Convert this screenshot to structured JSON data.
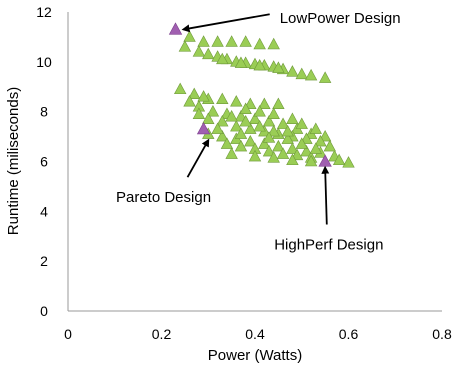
{
  "chart_data": {
    "type": "scatter",
    "xlabel": "Power (Watts)",
    "ylabel": "Runtime (miliseconds)",
    "xlim": [
      0,
      0.8
    ],
    "ylim": [
      0,
      12
    ],
    "x_ticks": [
      "0",
      "0.2",
      "0.4",
      "0.6",
      "0.8"
    ],
    "y_ticks": [
      "0",
      "2",
      "4",
      "6",
      "8",
      "10",
      "12"
    ],
    "grid": false,
    "colors": {
      "designs": "#9acd55",
      "designs_stroke": "#6f9a3a",
      "highlight": "#a05fb0",
      "axis": "#999999"
    },
    "series": [
      {
        "points": [
          {
            "x": 0.26,
            "y": 11.0
          },
          {
            "x": 0.29,
            "y": 10.8
          },
          {
            "x": 0.32,
            "y": 10.8
          },
          {
            "x": 0.35,
            "y": 10.8
          },
          {
            "x": 0.38,
            "y": 10.8
          },
          {
            "x": 0.25,
            "y": 10.6
          },
          {
            "x": 0.28,
            "y": 10.4
          },
          {
            "x": 0.3,
            "y": 10.3
          },
          {
            "x": 0.32,
            "y": 10.2
          },
          {
            "x": 0.34,
            "y": 10.1
          },
          {
            "x": 0.36,
            "y": 10.0
          },
          {
            "x": 0.38,
            "y": 9.95
          },
          {
            "x": 0.4,
            "y": 9.9
          },
          {
            "x": 0.42,
            "y": 9.85
          },
          {
            "x": 0.44,
            "y": 9.8
          },
          {
            "x": 0.46,
            "y": 9.7
          },
          {
            "x": 0.48,
            "y": 9.6
          },
          {
            "x": 0.5,
            "y": 9.5
          },
          {
            "x": 0.52,
            "y": 9.45
          },
          {
            "x": 0.55,
            "y": 9.35
          },
          {
            "x": 0.33,
            "y": 10.1
          },
          {
            "x": 0.37,
            "y": 9.95
          },
          {
            "x": 0.41,
            "y": 9.85
          },
          {
            "x": 0.45,
            "y": 9.75
          },
          {
            "x": 0.41,
            "y": 10.7
          },
          {
            "x": 0.44,
            "y": 10.7
          },
          {
            "x": 0.24,
            "y": 8.9
          },
          {
            "x": 0.27,
            "y": 8.7
          },
          {
            "x": 0.3,
            "y": 8.5
          },
          {
            "x": 0.33,
            "y": 8.5
          },
          {
            "x": 0.36,
            "y": 8.4
          },
          {
            "x": 0.39,
            "y": 8.3
          },
          {
            "x": 0.42,
            "y": 8.3
          },
          {
            "x": 0.45,
            "y": 8.3
          },
          {
            "x": 0.26,
            "y": 8.4
          },
          {
            "x": 0.28,
            "y": 8.2
          },
          {
            "x": 0.31,
            "y": 8.0
          },
          {
            "x": 0.34,
            "y": 7.9
          },
          {
            "x": 0.37,
            "y": 7.8
          },
          {
            "x": 0.4,
            "y": 7.7
          },
          {
            "x": 0.43,
            "y": 7.6
          },
          {
            "x": 0.46,
            "y": 7.5
          },
          {
            "x": 0.49,
            "y": 7.3
          },
          {
            "x": 0.52,
            "y": 7.1
          },
          {
            "x": 0.55,
            "y": 7.0
          },
          {
            "x": 0.28,
            "y": 7.9
          },
          {
            "x": 0.3,
            "y": 7.7
          },
          {
            "x": 0.33,
            "y": 7.6
          },
          {
            "x": 0.36,
            "y": 7.4
          },
          {
            "x": 0.39,
            "y": 7.3
          },
          {
            "x": 0.42,
            "y": 7.2
          },
          {
            "x": 0.45,
            "y": 7.1
          },
          {
            "x": 0.48,
            "y": 7.0
          },
          {
            "x": 0.51,
            "y": 6.9
          },
          {
            "x": 0.54,
            "y": 6.8
          },
          {
            "x": 0.3,
            "y": 7.1
          },
          {
            "x": 0.33,
            "y": 7.0
          },
          {
            "x": 0.36,
            "y": 6.9
          },
          {
            "x": 0.39,
            "y": 6.8
          },
          {
            "x": 0.42,
            "y": 6.7
          },
          {
            "x": 0.45,
            "y": 6.6
          },
          {
            "x": 0.48,
            "y": 6.5
          },
          {
            "x": 0.51,
            "y": 6.4
          },
          {
            "x": 0.54,
            "y": 6.35
          },
          {
            "x": 0.57,
            "y": 6.2
          },
          {
            "x": 0.6,
            "y": 5.95
          },
          {
            "x": 0.34,
            "y": 6.7
          },
          {
            "x": 0.37,
            "y": 6.6
          },
          {
            "x": 0.4,
            "y": 6.5
          },
          {
            "x": 0.43,
            "y": 6.4
          },
          {
            "x": 0.46,
            "y": 6.3
          },
          {
            "x": 0.49,
            "y": 6.25
          },
          {
            "x": 0.52,
            "y": 6.15
          },
          {
            "x": 0.58,
            "y": 6.05
          },
          {
            "x": 0.35,
            "y": 7.8
          },
          {
            "x": 0.38,
            "y": 7.6
          },
          {
            "x": 0.41,
            "y": 7.4
          },
          {
            "x": 0.44,
            "y": 7.2
          },
          {
            "x": 0.47,
            "y": 6.9
          },
          {
            "x": 0.5,
            "y": 6.7
          },
          {
            "x": 0.53,
            "y": 6.5
          },
          {
            "x": 0.56,
            "y": 6.6
          },
          {
            "x": 0.32,
            "y": 7.3
          },
          {
            "x": 0.37,
            "y": 7.1
          },
          {
            "x": 0.43,
            "y": 6.95
          },
          {
            "x": 0.47,
            "y": 7.2
          },
          {
            "x": 0.5,
            "y": 7.5
          },
          {
            "x": 0.53,
            "y": 7.3
          },
          {
            "x": 0.29,
            "y": 8.6
          },
          {
            "x": 0.38,
            "y": 8.1
          },
          {
            "x": 0.41,
            "y": 8.0
          },
          {
            "x": 0.44,
            "y": 7.9
          },
          {
            "x": 0.48,
            "y": 7.7
          },
          {
            "x": 0.35,
            "y": 6.3
          },
          {
            "x": 0.4,
            "y": 6.2
          },
          {
            "x": 0.44,
            "y": 6.15
          },
          {
            "x": 0.48,
            "y": 6.05
          },
          {
            "x": 0.52,
            "y": 6.0
          }
        ]
      },
      {
        "points": [
          {
            "x": 0.23,
            "y": 11.3
          },
          {
            "x": 0.29,
            "y": 7.3
          },
          {
            "x": 0.55,
            "y": 6.0
          }
        ]
      }
    ],
    "annotations": [
      {
        "text": "LowPower Design",
        "target": {
          "x": 0.23,
          "y": 11.3
        },
        "anchor": {
          "x": 0.44,
          "y": 11.75
        }
      },
      {
        "text": "Pareto Design",
        "target": {
          "x": 0.3,
          "y": 6.85
        },
        "anchor": {
          "x": 0.23,
          "y": 4.65
        }
      },
      {
        "text": "HighPerf Design",
        "target": {
          "x": 0.55,
          "y": 5.75
        },
        "anchor": {
          "x": 0.56,
          "y": 2.75
        }
      }
    ]
  }
}
